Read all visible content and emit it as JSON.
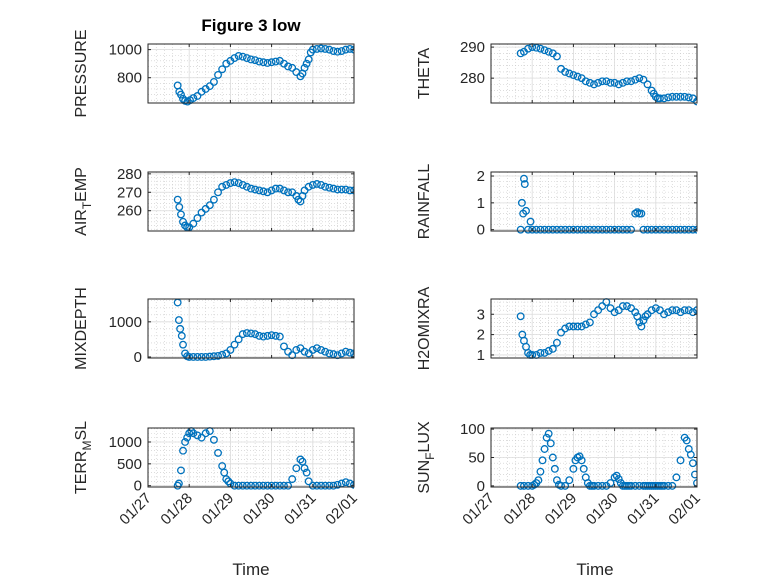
{
  "figure_title": "Figure 3 low",
  "x_axis_label": "Time",
  "colors": {
    "marker": "#0072BD",
    "axes": "#262626",
    "grid": "#c8c8c8",
    "background": "#ffffff"
  },
  "chart_data": [
    {
      "type": "scatter",
      "ylabel": "PRESSURE",
      "xlim": [
        0,
        5
      ],
      "ylim": [
        620,
        1040
      ],
      "yticks": [
        800,
        1000
      ],
      "grid": true,
      "minor_grid": true,
      "show_xtick_labels": false,
      "x": [
        0.72,
        0.76,
        0.8,
        0.85,
        0.9,
        0.96,
        1.02,
        1.1,
        1.2,
        1.3,
        1.4,
        1.5,
        1.6,
        1.7,
        1.8,
        1.9,
        2.0,
        2.1,
        2.2,
        2.3,
        2.4,
        2.5,
        2.6,
        2.7,
        2.8,
        2.9,
        3.0,
        3.1,
        3.2,
        3.3,
        3.4,
        3.5,
        3.6,
        3.7,
        3.75,
        3.8,
        3.85,
        3.9,
        3.95,
        4.0,
        4.1,
        4.2,
        4.3,
        4.4,
        4.5,
        4.6,
        4.7,
        4.8,
        4.9,
        5.0
      ],
      "y": [
        745,
        700,
        680,
        650,
        635,
        630,
        640,
        655,
        670,
        700,
        720,
        740,
        770,
        820,
        860,
        900,
        920,
        940,
        955,
        950,
        940,
        930,
        925,
        915,
        910,
        905,
        910,
        915,
        920,
        900,
        880,
        870,
        840,
        810,
        830,
        870,
        900,
        930,
        980,
        1000,
        1005,
        1008,
        1005,
        1000,
        990,
        985,
        990,
        1000,
        1005,
        1000
      ]
    },
    {
      "type": "scatter",
      "ylabel": "THETA",
      "xlim": [
        0,
        5
      ],
      "ylim": [
        272,
        291
      ],
      "yticks": [
        280,
        290
      ],
      "grid": true,
      "minor_grid": true,
      "show_xtick_labels": false,
      "x": [
        0.72,
        0.8,
        0.9,
        1.0,
        1.1,
        1.2,
        1.3,
        1.4,
        1.5,
        1.6,
        1.7,
        1.8,
        1.9,
        2.0,
        2.1,
        2.2,
        2.3,
        2.4,
        2.5,
        2.6,
        2.7,
        2.8,
        2.9,
        3.0,
        3.1,
        3.2,
        3.3,
        3.4,
        3.5,
        3.6,
        3.7,
        3.8,
        3.9,
        3.95,
        4.0,
        4.05,
        4.1,
        4.2,
        4.3,
        4.4,
        4.5,
        4.6,
        4.7,
        4.8,
        4.9,
        5.0
      ],
      "y": [
        288,
        288.5,
        289.5,
        290,
        289.8,
        289.5,
        289,
        288.5,
        288,
        287,
        283,
        282,
        281.5,
        281,
        280.5,
        280,
        279,
        278.5,
        278,
        278.5,
        279,
        279,
        278.5,
        278.5,
        278,
        278.5,
        279,
        279,
        279.5,
        280,
        279.5,
        278,
        276,
        275,
        274,
        273.5,
        273.5,
        273.5,
        273.8,
        274,
        274,
        274,
        274,
        273.8,
        273.5,
        272.5
      ]
    },
    {
      "type": "scatter",
      "ylabel": "AIR_TEMP",
      "xlim": [
        0,
        5
      ],
      "ylim": [
        249,
        281
      ],
      "yticks": [
        260,
        270,
        280
      ],
      "grid": true,
      "minor_grid": true,
      "show_xtick_labels": false,
      "x": [
        0.72,
        0.76,
        0.8,
        0.85,
        0.9,
        0.95,
        1.0,
        1.1,
        1.2,
        1.3,
        1.4,
        1.5,
        1.6,
        1.7,
        1.8,
        1.9,
        2.0,
        2.1,
        2.2,
        2.3,
        2.4,
        2.5,
        2.6,
        2.7,
        2.8,
        2.9,
        3.0,
        3.1,
        3.2,
        3.3,
        3.4,
        3.5,
        3.6,
        3.65,
        3.7,
        3.75,
        3.8,
        3.9,
        4.0,
        4.1,
        4.2,
        4.3,
        4.4,
        4.5,
        4.6,
        4.7,
        4.8,
        4.9,
        5.0
      ],
      "y": [
        266,
        262,
        258,
        254,
        252,
        251,
        251,
        253,
        256,
        259,
        261,
        263,
        266,
        270,
        273,
        274,
        275,
        275.5,
        275,
        274,
        273,
        272,
        271.5,
        271,
        270.5,
        270,
        271,
        272,
        272,
        271,
        270,
        270,
        268,
        266,
        265,
        268,
        271,
        273,
        274,
        274.5,
        274,
        273,
        272.5,
        272,
        271.5,
        271.5,
        271.5,
        271,
        271
      ]
    },
    {
      "type": "scatter",
      "ylabel": "RAINFALL",
      "xlim": [
        0,
        5
      ],
      "ylim": [
        -0.05,
        2.15
      ],
      "yticks": [
        0,
        1,
        2
      ],
      "grid": true,
      "minor_grid": true,
      "show_xtick_labels": false,
      "x": [
        0.72,
        0.75,
        0.78,
        0.8,
        0.82,
        0.85,
        0.9,
        0.96,
        1.0,
        1.1,
        1.2,
        1.3,
        1.4,
        1.5,
        1.6,
        1.7,
        1.8,
        1.9,
        2.0,
        2.1,
        2.2,
        2.3,
        2.4,
        2.5,
        2.6,
        2.7,
        2.8,
        2.9,
        3.0,
        3.1,
        3.2,
        3.3,
        3.4,
        3.5,
        3.55,
        3.6,
        3.65,
        3.7,
        3.8,
        3.9,
        4.0,
        4.1,
        4.2,
        4.3,
        4.4,
        4.5,
        4.6,
        4.7,
        4.8,
        4.9,
        5.0
      ],
      "y": [
        0.0,
        1.0,
        0.6,
        1.9,
        1.7,
        0.7,
        0.0,
        0.3,
        0.0,
        0,
        0,
        0,
        0,
        0,
        0,
        0,
        0,
        0,
        0,
        0,
        0,
        0,
        0,
        0,
        0,
        0,
        0,
        0,
        0,
        0,
        0,
        0,
        0,
        0.6,
        0.65,
        0.6,
        0.6,
        0,
        0,
        0,
        0,
        0,
        0,
        0,
        0,
        0,
        0,
        0,
        0,
        0,
        0
      ]
    },
    {
      "type": "scatter",
      "ylabel": "MIXDEPTH",
      "xlim": [
        0,
        5
      ],
      "ylim": [
        -30,
        1650
      ],
      "yticks": [
        0,
        1000
      ],
      "grid": true,
      "minor_grid": true,
      "show_xtick_labels": false,
      "x": [
        0.72,
        0.75,
        0.78,
        0.82,
        0.85,
        0.9,
        0.95,
        1.0,
        1.1,
        1.2,
        1.3,
        1.4,
        1.5,
        1.6,
        1.7,
        1.8,
        1.9,
        2.0,
        2.1,
        2.2,
        2.3,
        2.4,
        2.5,
        2.6,
        2.7,
        2.8,
        2.9,
        3.0,
        3.1,
        3.2,
        3.3,
        3.4,
        3.5,
        3.6,
        3.7,
        3.8,
        3.9,
        4.0,
        4.1,
        4.2,
        4.3,
        4.4,
        4.5,
        4.6,
        4.7,
        4.8,
        4.9,
        5.0
      ],
      "y": [
        1550,
        1050,
        800,
        600,
        350,
        100,
        20,
        0,
        0,
        0,
        0,
        0,
        10,
        20,
        30,
        60,
        100,
        200,
        350,
        500,
        650,
        680,
        670,
        650,
        600,
        580,
        600,
        620,
        600,
        580,
        300,
        150,
        50,
        200,
        250,
        150,
        100,
        200,
        250,
        200,
        150,
        100,
        80,
        50,
        100,
        150,
        120,
        100
      ]
    },
    {
      "type": "scatter",
      "ylabel": "H2OMIXRA",
      "xlim": [
        0,
        5
      ],
      "ylim": [
        0.85,
        3.75
      ],
      "yticks": [
        1,
        2,
        3
      ],
      "grid": true,
      "minor_grid": true,
      "show_xtick_labels": false,
      "x": [
        0.72,
        0.76,
        0.8,
        0.85,
        0.9,
        0.95,
        1.0,
        1.1,
        1.2,
        1.3,
        1.4,
        1.5,
        1.6,
        1.7,
        1.8,
        1.9,
        2.0,
        2.1,
        2.2,
        2.3,
        2.4,
        2.5,
        2.6,
        2.7,
        2.8,
        2.9,
        3.0,
        3.1,
        3.2,
        3.3,
        3.4,
        3.5,
        3.55,
        3.6,
        3.65,
        3.7,
        3.75,
        3.8,
        3.9,
        4.0,
        4.1,
        4.2,
        4.3,
        4.4,
        4.5,
        4.6,
        4.7,
        4.8,
        4.9,
        5.0
      ],
      "y": [
        2.9,
        2.0,
        1.7,
        1.4,
        1.1,
        1.0,
        1.0,
        1.0,
        1.1,
        1.1,
        1.2,
        1.3,
        1.6,
        2.1,
        2.3,
        2.4,
        2.4,
        2.4,
        2.4,
        2.5,
        2.6,
        3.0,
        3.2,
        3.4,
        3.6,
        3.3,
        3.1,
        3.2,
        3.4,
        3.4,
        3.3,
        3.1,
        2.9,
        2.6,
        2.4,
        2.7,
        2.9,
        3.0,
        3.2,
        3.3,
        3.2,
        3.0,
        3.1,
        3.2,
        3.2,
        3.1,
        3.2,
        3.2,
        3.1,
        3.2
      ]
    },
    {
      "type": "scatter",
      "ylabel": "TERR_MSL",
      "xlim": [
        0,
        5
      ],
      "ylim": [
        -30,
        1320
      ],
      "yticks": [
        0,
        500,
        1000
      ],
      "grid": true,
      "minor_grid": true,
      "show_xtick_labels": true,
      "x": [
        0.72,
        0.75,
        0.8,
        0.85,
        0.9,
        0.95,
        1.0,
        1.05,
        1.1,
        1.2,
        1.3,
        1.4,
        1.5,
        1.6,
        1.7,
        1.8,
        1.85,
        1.9,
        1.95,
        2.0,
        2.1,
        2.2,
        2.3,
        2.4,
        2.5,
        2.6,
        2.7,
        2.8,
        2.9,
        3.0,
        3.1,
        3.2,
        3.3,
        3.4,
        3.5,
        3.6,
        3.7,
        3.75,
        3.8,
        3.85,
        3.9,
        4.0,
        4.1,
        4.2,
        4.3,
        4.4,
        4.5,
        4.6,
        4.7,
        4.8,
        4.9,
        5.0
      ],
      "y": [
        0,
        50,
        350,
        800,
        1000,
        1100,
        1200,
        1250,
        1200,
        1150,
        1100,
        1200,
        1250,
        1050,
        750,
        450,
        300,
        150,
        100,
        50,
        0,
        0,
        0,
        0,
        0,
        0,
        0,
        0,
        0,
        0,
        0,
        0,
        0,
        0,
        150,
        400,
        600,
        550,
        400,
        300,
        100,
        0,
        0,
        0,
        0,
        0,
        0,
        20,
        50,
        80,
        50,
        20
      ]
    },
    {
      "type": "scatter",
      "ylabel": "SUN_FLUX",
      "xlim": [
        0,
        5
      ],
      "ylim": [
        -2,
        102
      ],
      "yticks": [
        0,
        50,
        100
      ],
      "grid": true,
      "minor_grid": true,
      "show_xtick_labels": true,
      "x": [
        0.72,
        0.8,
        0.9,
        1.0,
        1.05,
        1.1,
        1.15,
        1.2,
        1.25,
        1.3,
        1.35,
        1.4,
        1.45,
        1.5,
        1.55,
        1.6,
        1.65,
        1.7,
        1.8,
        1.9,
        2.0,
        2.05,
        2.1,
        2.15,
        2.2,
        2.25,
        2.3,
        2.35,
        2.4,
        2.45,
        2.5,
        2.6,
        2.7,
        2.8,
        2.9,
        3.0,
        3.05,
        3.1,
        3.15,
        3.2,
        3.25,
        3.3,
        3.35,
        3.4,
        3.5,
        3.6,
        3.7,
        3.75,
        3.8,
        3.85,
        3.9,
        3.95,
        4.0,
        4.05,
        4.1,
        4.15,
        4.2,
        4.3,
        4.4,
        4.5,
        4.6,
        4.7,
        4.75,
        4.8,
        4.85,
        4.9,
        4.95,
        5.0
      ],
      "y": [
        0,
        0,
        0,
        0,
        2,
        5,
        10,
        25,
        45,
        65,
        85,
        92,
        75,
        50,
        30,
        10,
        2,
        0,
        0,
        10,
        30,
        45,
        50,
        52,
        45,
        30,
        15,
        5,
        0,
        0,
        0,
        0,
        0,
        0,
        5,
        15,
        18,
        12,
        5,
        0,
        0,
        0,
        0,
        0,
        0,
        0,
        0,
        0,
        0,
        0,
        0,
        0,
        0,
        0,
        0,
        0,
        0,
        0,
        0,
        15,
        45,
        85,
        80,
        65,
        55,
        40,
        20,
        5
      ]
    }
  ],
  "x_tick_labels": [
    "01/27",
    "01/28",
    "01/29",
    "01/30",
    "01/31",
    "02/01"
  ]
}
